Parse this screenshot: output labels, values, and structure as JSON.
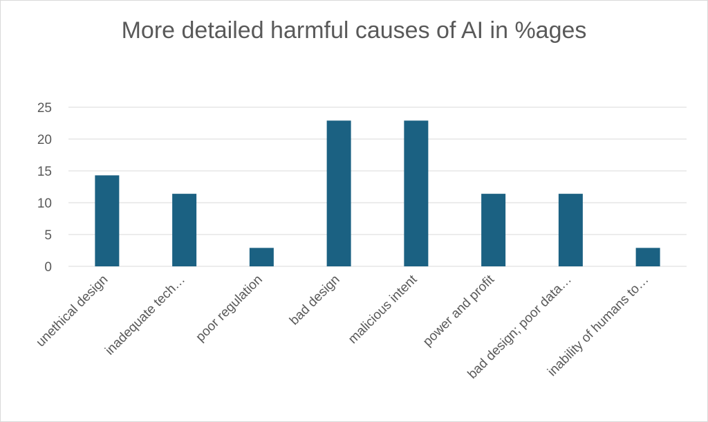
{
  "chart_data": {
    "type": "bar",
    "title": "More detailed harmful causes of AI in %ages",
    "categories": [
      "unethical design",
      "inadequate tech…",
      "poor regulation",
      "bad design",
      "malicious intent",
      "power and profit",
      "bad design; poor data…",
      "inability of humans to…"
    ],
    "values": [
      14.3,
      11.4,
      2.9,
      22.9,
      22.9,
      11.4,
      11.4,
      2.9
    ],
    "ylim": [
      0,
      25
    ],
    "yticks": [
      0,
      5,
      10,
      15,
      20,
      25
    ],
    "grid": true,
    "bar_color": "#1b6182"
  }
}
